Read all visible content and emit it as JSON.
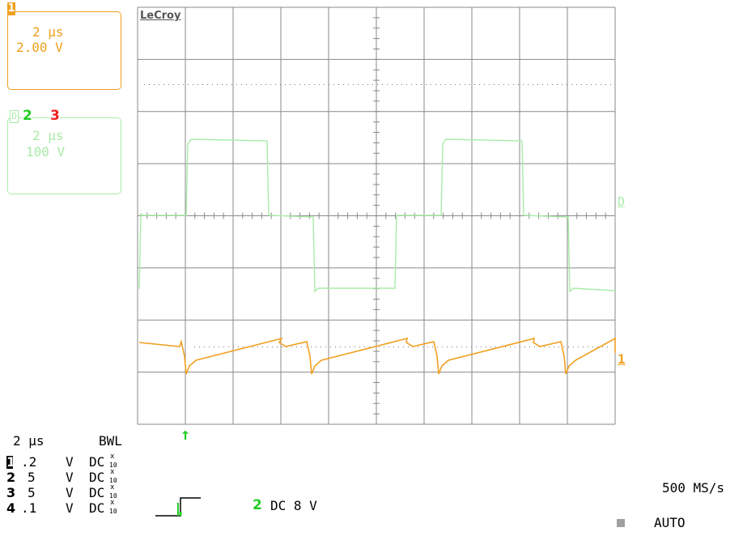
{
  "colors": {
    "ch1": "#f0a020",
    "ch2": "#a8eca8",
    "ch2_label": "#22cc22",
    "ch3_label": "#ee2020",
    "grid": "#8a8a8a",
    "trigger_arrow": "#22cc22"
  },
  "brand": "LeCroy",
  "ch1_box": {
    "number": "1",
    "timebase": "2 µs",
    "volts": "2.00 V"
  },
  "math_box": {
    "label": "D",
    "sources": [
      "2",
      "3"
    ],
    "timebase": "2 µs",
    "volts": "100 V"
  },
  "markers": {
    "math_right": "D",
    "ch1_right": "1",
    "trigger_arrow": "↑"
  },
  "timebase": {
    "value": "2 µs",
    "bwl": "BWL"
  },
  "channels": [
    {
      "num": "1",
      "volts": ".2",
      "unit": "V",
      "coupling": "DC",
      "probe_top": "x",
      "probe_bot": "10"
    },
    {
      "num": "2",
      "volts": "5",
      "unit": "V",
      "coupling": "DC",
      "probe_top": "x",
      "probe_bot": "10"
    },
    {
      "num": "3",
      "volts": "5",
      "unit": "V",
      "coupling": "DC",
      "probe_top": "x",
      "probe_bot": "10"
    },
    {
      "num": "4",
      "volts": ".1",
      "unit": "V",
      "coupling": "DC",
      "probe_top": "x",
      "probe_bot": "10"
    }
  ],
  "trigger": {
    "channel": "2",
    "setting": "DC 8 V"
  },
  "sample_rate": "500 MS/s",
  "trigger_mode": "AUTO"
}
